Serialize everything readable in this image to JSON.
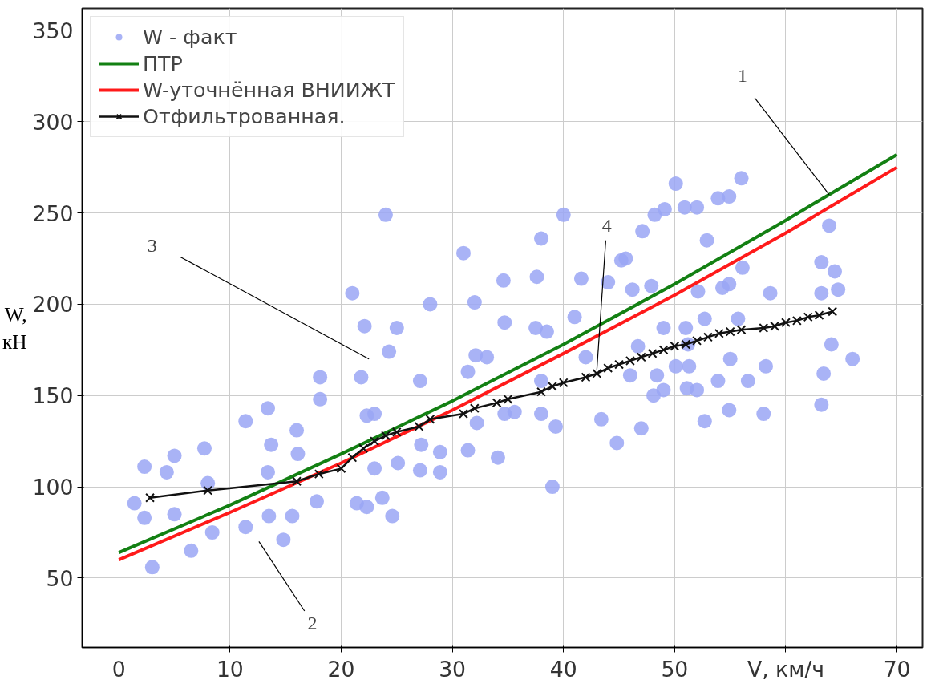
{
  "chart_data": {
    "type": "scatter",
    "xlabel": "V, км/ч",
    "ylabel": "W,\nкН",
    "xlim": [
      -3.3,
      72.3
    ],
    "ylim": [
      12,
      362
    ],
    "xticks": [
      0,
      10,
      20,
      30,
      40,
      50,
      {
        "value": 60,
        "label": null
      },
      70
    ],
    "yticks": [
      50,
      100,
      150,
      200,
      250,
      300,
      350
    ],
    "grid": true,
    "legend": "top left",
    "series": [
      {
        "name": "W - факт",
        "marker": "circle",
        "color": "#9aa6f5",
        "x": [
          1.4,
          2.3,
          2.3,
          3.0,
          4.3,
          5.0,
          5.0,
          6.5,
          7.7,
          8.0,
          8.4,
          11.4,
          11.4,
          13.4,
          13.7,
          13.4,
          13.5,
          14.8,
          15.6,
          16.0,
          16.1,
          18.1,
          18.1,
          17.8,
          21.0,
          21.4,
          21.8,
          22.1,
          22.3,
          22.3,
          23.0,
          23.0,
          23.7,
          24.0,
          24.3,
          24.6,
          25.0,
          25.1,
          27.1,
          27.2,
          27.1,
          28.0,
          28.9,
          28.9,
          31.0,
          31.4,
          31.4,
          32.0,
          32.1,
          32.2,
          33.1,
          34.1,
          34.6,
          34.7,
          34.7,
          35.6,
          37.5,
          38.0,
          37.6,
          38.0,
          38.0,
          38.5,
          39.0,
          39.3,
          40.0,
          41.0,
          41.6,
          42.0,
          43.4,
          44.0,
          44.8,
          45.2,
          45.6,
          46.0,
          46.2,
          47.1,
          47.0,
          46.7,
          47.9,
          48.2,
          48.1,
          48.4,
          49.0,
          49.0,
          49.1,
          50.1,
          50.1,
          50.9,
          51.0,
          51.2,
          51.1,
          51.3,
          52.0,
          52.0,
          52.1,
          52.7,
          52.9,
          52.7,
          53.9,
          53.9,
          54.3,
          54.9,
          54.9,
          54.9,
          55.0,
          55.7,
          56.0,
          56.1,
          56.6,
          58.0,
          58.2,
          58.6,
          63.2,
          63.2,
          63.2,
          63.4,
          63.9,
          64.1,
          64.4,
          64.7,
          66.0
        ],
        "values": [
          91,
          111,
          83,
          56,
          108,
          117,
          85,
          65,
          121,
          102,
          75,
          136,
          78,
          143,
          123,
          108,
          84,
          71,
          84,
          131,
          118,
          160,
          148,
          92,
          206,
          91,
          160,
          188,
          139,
          89,
          140,
          110,
          94,
          249,
          174,
          84,
          187,
          113,
          158,
          123,
          109,
          200,
          119,
          108,
          228,
          163,
          120,
          201,
          172,
          135,
          171,
          116,
          213,
          190,
          140,
          141,
          187,
          236,
          215,
          140,
          158,
          185,
          100,
          133,
          249,
          193,
          214,
          171,
          137,
          212,
          124,
          224,
          225,
          161,
          208,
          240,
          132,
          177,
          210,
          249,
          150,
          161,
          187,
          153,
          252,
          166,
          266,
          253,
          187,
          178,
          154,
          166,
          253,
          153,
          207,
          192,
          235,
          136,
          258,
          158,
          209,
          259,
          211,
          142,
          170,
          192,
          269,
          220,
          158,
          140,
          166,
          206,
          223,
          206,
          145,
          162,
          243,
          178,
          218,
          208,
          170
        ]
      },
      {
        "name": "ПТР",
        "type": "line",
        "marker": "none",
        "color": "#138013",
        "x": [
          0,
          10,
          20,
          30,
          40,
          50,
          60,
          70
        ],
        "values": [
          64,
          90,
          118,
          147,
          178,
          211,
          246,
          282
        ]
      },
      {
        "name": "W-уточнённая ВНИИЖТ",
        "type": "line",
        "marker": "none",
        "color": "#ff1a1a",
        "x": [
          0,
          10,
          20,
          30,
          40,
          50,
          60,
          70
        ],
        "values": [
          60,
          86,
          113,
          142,
          173,
          205,
          239,
          275
        ]
      },
      {
        "name": "Отфильтрованная.",
        "type": "line",
        "marker": "cross",
        "color": "#111111",
        "x": [
          2.8,
          8,
          16,
          18,
          20,
          21,
          22,
          23,
          24,
          25,
          27,
          28,
          31,
          32,
          34,
          35,
          38,
          39,
          40,
          42,
          43,
          44,
          45,
          46,
          47,
          48,
          49,
          50,
          51,
          52,
          53,
          54,
          55,
          56,
          58,
          59,
          60,
          61,
          62,
          63,
          64.2
        ],
        "values": [
          94,
          98,
          103,
          107,
          110,
          116,
          121,
          125,
          128,
          130,
          133,
          137,
          140,
          143,
          146,
          148,
          152,
          155,
          157,
          160,
          162,
          165,
          167,
          169,
          171,
          173,
          175,
          177,
          178,
          180,
          182,
          184,
          185,
          186,
          187,
          188,
          190,
          191,
          193,
          194,
          196
        ]
      }
    ],
    "annotations": [
      {
        "text": "1",
        "x": 63.9,
        "y": 260
      },
      "2",
      "3",
      {
        "text": "4",
        "x": 43.0,
        "y": 164
      }
    ]
  }
}
